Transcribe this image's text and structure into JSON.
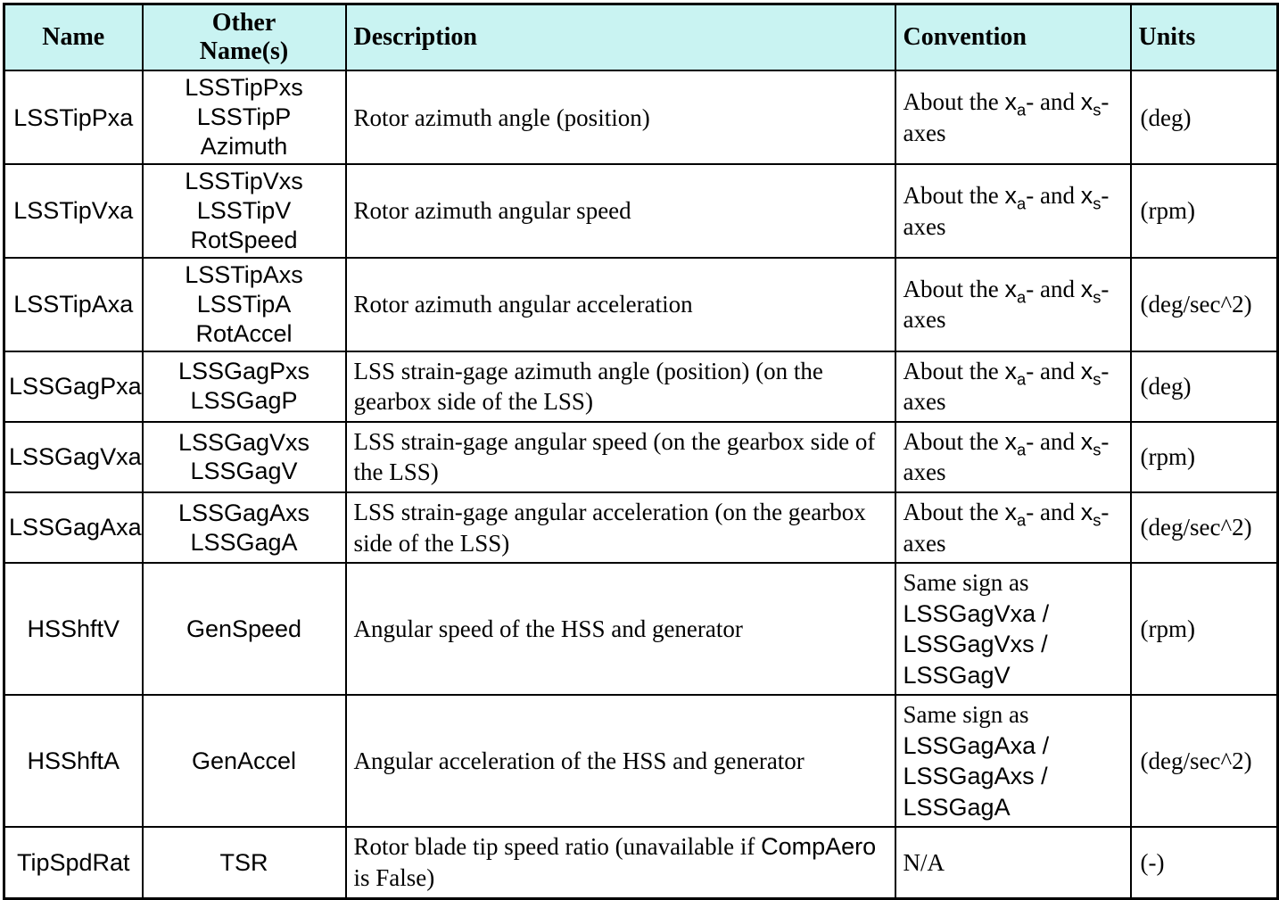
{
  "table": {
    "colors": {
      "header_bg": "#c9f3f2",
      "border": "#000000"
    },
    "headers": {
      "name": "Name",
      "other": "Other\nName(s)",
      "description": "Description",
      "convention": "Convention",
      "units": "Units"
    },
    "rows": [
      {
        "name": "LSSTipPxa",
        "other": "LSSTipPxs\nLSSTipP\nAzimuth",
        "description": [
          {
            "t": "Rotor azimuth angle (position)",
            "s": "serif"
          }
        ],
        "convention": [
          {
            "t": "About the ",
            "s": "serif"
          },
          {
            "t": "x",
            "s": "sans"
          },
          {
            "t": "a",
            "s": "sub"
          },
          {
            "t": "- and ",
            "s": "serif"
          },
          {
            "t": "x",
            "s": "sans"
          },
          {
            "t": "s",
            "s": "sub"
          },
          {
            "t": "-axes",
            "s": "serif"
          }
        ],
        "units": "(deg)"
      },
      {
        "name": "LSSTipVxa",
        "other": "LSSTipVxs\nLSSTipV\nRotSpeed",
        "description": [
          {
            "t": "Rotor azimuth angular speed",
            "s": "serif"
          }
        ],
        "convention": [
          {
            "t": "About the ",
            "s": "serif"
          },
          {
            "t": "x",
            "s": "sans"
          },
          {
            "t": "a",
            "s": "sub"
          },
          {
            "t": "- and ",
            "s": "serif"
          },
          {
            "t": "x",
            "s": "sans"
          },
          {
            "t": "s",
            "s": "sub"
          },
          {
            "t": "-axes",
            "s": "serif"
          }
        ],
        "units": "(rpm)"
      },
      {
        "name": "LSSTipAxa",
        "other": "LSSTipAxs\nLSSTipA\nRotAccel",
        "description": [
          {
            "t": "Rotor azimuth angular acceleration",
            "s": "serif"
          }
        ],
        "convention": [
          {
            "t": "About the ",
            "s": "serif"
          },
          {
            "t": "x",
            "s": "sans"
          },
          {
            "t": "a",
            "s": "sub"
          },
          {
            "t": "- and ",
            "s": "serif"
          },
          {
            "t": "x",
            "s": "sans"
          },
          {
            "t": "s",
            "s": "sub"
          },
          {
            "t": "-axes",
            "s": "serif"
          }
        ],
        "units": "(deg/sec^2)"
      },
      {
        "name": "LSSGagPxa",
        "other": "LSSGagPxs\nLSSGagP",
        "description": [
          {
            "t": "LSS strain-gage azimuth angle (position) (on the gearbox side of the LSS)",
            "s": "serif"
          }
        ],
        "convention": [
          {
            "t": "About the ",
            "s": "serif"
          },
          {
            "t": "x",
            "s": "sans"
          },
          {
            "t": "a",
            "s": "sub"
          },
          {
            "t": "- and ",
            "s": "serif"
          },
          {
            "t": "x",
            "s": "sans"
          },
          {
            "t": "s",
            "s": "sub"
          },
          {
            "t": "-axes",
            "s": "serif"
          }
        ],
        "units": "(deg)"
      },
      {
        "name": "LSSGagVxa",
        "other": "LSSGagVxs\nLSSGagV",
        "description": [
          {
            "t": "LSS strain-gage angular speed (on the gearbox side of the LSS)",
            "s": "serif"
          }
        ],
        "convention": [
          {
            "t": "About the ",
            "s": "serif"
          },
          {
            "t": "x",
            "s": "sans"
          },
          {
            "t": "a",
            "s": "sub"
          },
          {
            "t": "- and ",
            "s": "serif"
          },
          {
            "t": "x",
            "s": "sans"
          },
          {
            "t": "s",
            "s": "sub"
          },
          {
            "t": "-axes",
            "s": "serif"
          }
        ],
        "units": "(rpm)"
      },
      {
        "name": "LSSGagAxa",
        "other": "LSSGagAxs\nLSSGagA",
        "description": [
          {
            "t": "LSS strain-gage angular acceleration (on the gearbox side of the LSS)",
            "s": "serif"
          }
        ],
        "convention": [
          {
            "t": "About the ",
            "s": "serif"
          },
          {
            "t": "x",
            "s": "sans"
          },
          {
            "t": "a",
            "s": "sub"
          },
          {
            "t": "- and ",
            "s": "serif"
          },
          {
            "t": "x",
            "s": "sans"
          },
          {
            "t": "s",
            "s": "sub"
          },
          {
            "t": "-axes",
            "s": "serif"
          }
        ],
        "units": "(deg/sec^2)"
      },
      {
        "name": "HSShftV",
        "other": "GenSpeed",
        "description": [
          {
            "t": "Angular speed of the HSS and generator",
            "s": "serif"
          }
        ],
        "convention": [
          {
            "t": "Same sign as ",
            "s": "serif"
          },
          {
            "t": "LSSGagVxa / LSSGagVxs / LSSGagV",
            "s": "sans"
          }
        ],
        "units": "(rpm)"
      },
      {
        "name": "HSShftA",
        "other": "GenAccel",
        "description": [
          {
            "t": "Angular acceleration of the HSS and generator",
            "s": "serif"
          }
        ],
        "convention": [
          {
            "t": "Same sign as ",
            "s": "serif"
          },
          {
            "t": "LSSGagAxa / LSSGagAxs / LSSGagA",
            "s": "sans"
          }
        ],
        "units": "(deg/sec^2)"
      },
      {
        "name": "TipSpdRat",
        "other": "TSR",
        "description": [
          {
            "t": "Rotor blade tip speed ratio  (unavailable if ",
            "s": "serif"
          },
          {
            "t": "CompAero",
            "s": "sans"
          },
          {
            "t": " is False)",
            "s": "serif"
          }
        ],
        "convention": [
          {
            "t": "N/A",
            "s": "serif"
          }
        ],
        "units": "(-)"
      }
    ]
  }
}
